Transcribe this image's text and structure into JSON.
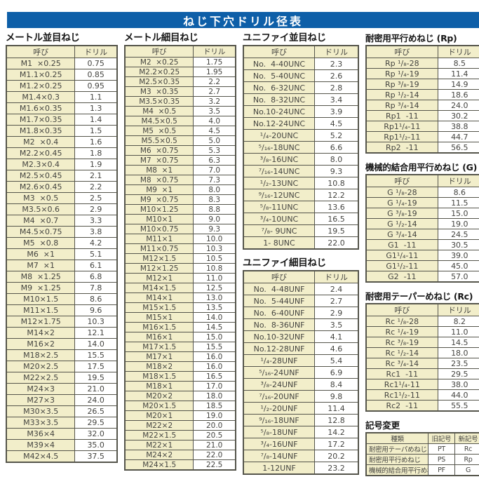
{
  "page_title": "ねじ下穴ドリル径表",
  "column_headers": {
    "name": "呼び",
    "drill": "ドリル"
  },
  "colors": {
    "title_bar_bg": "#0e5fa8",
    "title_text": "#ffffff",
    "cell_yellow": "#f2eeca",
    "border": "#55554b"
  },
  "sections": {
    "metric_coarse": {
      "title": "メートル並目ねじ",
      "rows": [
        [
          "M1  ×0.25",
          "0.75"
        ],
        [
          "M1.1×0.25",
          "0.85"
        ],
        [
          "M1.2×0.25",
          "0.95"
        ],
        [
          "M1.4×0.3",
          "1.1"
        ],
        [
          "M1.6×0.35",
          "1.3"
        ],
        [
          "M1.7×0.35",
          "1.4"
        ],
        [
          "M1.8×0.35",
          "1.5"
        ],
        [
          "M2  ×0.4",
          "1.6"
        ],
        [
          "M2.2×0.45",
          "1.8"
        ],
        [
          "M2.3×0.4",
          "1.9"
        ],
        [
          "M2.5×0.45",
          "2.1"
        ],
        [
          "M2.6×0.45",
          "2.2"
        ],
        [
          "M3  ×0.5",
          "2.5"
        ],
        [
          "M3.5×0.6",
          "2.9"
        ],
        [
          "M4  ×0.7",
          "3.3"
        ],
        [
          "M4.5×0.75",
          "3.8"
        ],
        [
          "M5  ×0.8",
          "4.2"
        ],
        [
          "M6  ×1",
          "5.1"
        ],
        [
          "M7  ×1",
          "6.1"
        ],
        [
          "M8  ×1.25",
          "6.8"
        ],
        [
          "M9  ×1.25",
          "7.8"
        ],
        [
          "M10×1.5",
          "8.6"
        ],
        [
          "M11×1.5",
          "9.6"
        ],
        [
          "M12×1.75",
          "10.3"
        ],
        [
          "M14×2",
          "12.1"
        ],
        [
          "M16×2",
          "14.0"
        ],
        [
          "M18×2.5",
          "15.5"
        ],
        [
          "M20×2.5",
          "17.5"
        ],
        [
          "M22×2.5",
          "19.5"
        ],
        [
          "M24×3",
          "21.0"
        ],
        [
          "M27×3",
          "24.0"
        ],
        [
          "M30×3.5",
          "26.5"
        ],
        [
          "M33×3.5",
          "29.5"
        ],
        [
          "M36×4",
          "32.0"
        ],
        [
          "M39×4",
          "35.0"
        ],
        [
          "M42×4.5",
          "37.5"
        ]
      ]
    },
    "metric_fine": {
      "title": "メートル細目ねじ",
      "rows": [
        [
          "M2  ×0.25",
          "1.75"
        ],
        [
          "M2.2×0.25",
          "1.95"
        ],
        [
          "M2.5×0.35",
          "2.2"
        ],
        [
          "M3  ×0.35",
          "2.7"
        ],
        [
          "M3.5×0.35",
          "3.2"
        ],
        [
          "M4  ×0.5",
          "3.5"
        ],
        [
          "M4.5×0.5",
          "4.0"
        ],
        [
          "M5  ×0.5",
          "4.5"
        ],
        [
          "M5.5×0.5",
          "5.0"
        ],
        [
          "M6  ×0.75",
          "5.3"
        ],
        [
          "M7  ×0.75",
          "6.3"
        ],
        [
          "M8  ×1",
          "7.0"
        ],
        [
          "M8  ×0.75",
          "7.3"
        ],
        [
          "M9  ×1",
          "8.0"
        ],
        [
          "M9  ×0.75",
          "8.3"
        ],
        [
          "M10×1.25",
          "8.8"
        ],
        [
          "M10×1",
          "9.0"
        ],
        [
          "M10×0.75",
          "9.3"
        ],
        [
          "M11×1",
          "10.0"
        ],
        [
          "M11×0.75",
          "10.3"
        ],
        [
          "M12×1.5",
          "10.5"
        ],
        [
          "M12×1.25",
          "10.8"
        ],
        [
          "M12×1",
          "11.0"
        ],
        [
          "M14×1.5",
          "12.5"
        ],
        [
          "M14×1",
          "13.0"
        ],
        [
          "M15×1.5",
          "13.5"
        ],
        [
          "M15×1",
          "14.0"
        ],
        [
          "M16×1.5",
          "14.5"
        ],
        [
          "M16×1",
          "15.0"
        ],
        [
          "M17×1.5",
          "15.5"
        ],
        [
          "M17×1",
          "16.0"
        ],
        [
          "M18×2",
          "16.0"
        ],
        [
          "M18×1.5",
          "16.5"
        ],
        [
          "M18×1",
          "17.0"
        ],
        [
          "M20×2",
          "18.0"
        ],
        [
          "M20×1.5",
          "18.5"
        ],
        [
          "M20×1",
          "19.0"
        ],
        [
          "M22×2",
          "20.0"
        ],
        [
          "M22×1.5",
          "20.5"
        ],
        [
          "M22×1",
          "21.0"
        ],
        [
          "M24×2",
          "22.0"
        ],
        [
          "M24×1.5",
          "22.5"
        ]
      ]
    },
    "unified_coarse": {
      "title": "ユニファイ並目ねじ",
      "rows": [
        [
          "No.  4-40UNC",
          "2.3"
        ],
        [
          "No.  5-40UNC",
          "2.6"
        ],
        [
          "No.  6-32UNC",
          "2.8"
        ],
        [
          "No.  8-32UNC",
          "3.4"
        ],
        [
          "No.10-24UNC",
          "3.9"
        ],
        [
          "No.12-24UNC",
          "4.5"
        ],
        [
          "¹/₄-20UNC",
          "5.2"
        ],
        [
          "⁵/₁₆-18UNC",
          "6.6"
        ],
        [
          "³/₈-16UNC",
          "8.0"
        ],
        [
          "⁷/₁₆-14UNC",
          "9.3"
        ],
        [
          "¹/₂-13UNC",
          "10.8"
        ],
        [
          "⁹/₁₆-12UNC",
          "12.2"
        ],
        [
          "⁵/₈-11UNC",
          "13.6"
        ],
        [
          "³/₄-10UNC",
          "16.5"
        ],
        [
          "⁷/₈- 9UNC",
          "19.5"
        ],
        [
          "1- 8UNC",
          "22.0"
        ]
      ]
    },
    "unified_fine": {
      "title": "ユニファイ細目ねじ",
      "rows": [
        [
          "No.  4-48UNF",
          "2.4"
        ],
        [
          "No.  5-44UNF",
          "2.7"
        ],
        [
          "No.  6-40UNF",
          "2.9"
        ],
        [
          "No.  8-36UNF",
          "3.5"
        ],
        [
          "No.10-32UNF",
          "4.1"
        ],
        [
          "No.12-28UNF",
          "4.6"
        ],
        [
          "¹/₄-28UNF",
          "5.4"
        ],
        [
          "⁵/₁₆-24UNF",
          "6.9"
        ],
        [
          "³/₈-24UNF",
          "8.4"
        ],
        [
          "⁷/₁₆-20UNF",
          "9.8"
        ],
        [
          "¹/₂-20UNF",
          "11.4"
        ],
        [
          "⁹/₁₆-18UNF",
          "12.8"
        ],
        [
          "⁵/₈-18UNF",
          "14.2"
        ],
        [
          "³/₄-16UNF",
          "17.2"
        ],
        [
          "⁷/₈-14UNF",
          "20.2"
        ],
        [
          "1-12UNF",
          "23.2"
        ]
      ]
    },
    "rp": {
      "title": "耐密用平行めねじ (Rp)",
      "rows": [
        [
          "Rp ¹/₈-28",
          "8.5"
        ],
        [
          "Rp ¹/₄-19",
          "11.4"
        ],
        [
          "Rp ³/₈-19",
          "14.9"
        ],
        [
          "Rp ¹/₂-14",
          "18.6"
        ],
        [
          "Rp ³/₄-14",
          "24.0"
        ],
        [
          "Rp1  -11",
          "30.2"
        ],
        [
          "Rp1¹/₄-11",
          "38.8"
        ],
        [
          "Rp1¹/₂-11",
          "44.7"
        ],
        [
          "Rp2  -11",
          "56.5"
        ]
      ]
    },
    "g": {
      "title": "機械的結合用平行めねじ (G)",
      "rows": [
        [
          "G ¹/₈-28",
          "8.6"
        ],
        [
          "G ¹/₄-19",
          "11.5"
        ],
        [
          "G ³/₈-19",
          "15.0"
        ],
        [
          "G ¹/₂-14",
          "19.0"
        ],
        [
          "G ³/₄-14",
          "24.5"
        ],
        [
          "G1  -11",
          "30.5"
        ],
        [
          "G1¹/₄-11",
          "39.0"
        ],
        [
          "G1¹/₂-11",
          "45.0"
        ],
        [
          "G2  -11",
          "57.0"
        ]
      ]
    },
    "rc": {
      "title": "耐密用テーパーめねじ (Rc)",
      "rows": [
        [
          "Rc ¹/₈-28",
          "8.2"
        ],
        [
          "Rc ¹/₄-19",
          "11.0"
        ],
        [
          "Rc ³/₈-19",
          "14.5"
        ],
        [
          "Rc ¹/₂-14",
          "18.0"
        ],
        [
          "Rc ³/₄-14",
          "23.5"
        ],
        [
          "Rc1  -11",
          "29.5"
        ],
        [
          "Rc1¹/₄-11",
          "38.0"
        ],
        [
          "Rc1¹/₂-11",
          "44.0"
        ],
        [
          "Rc2  -11",
          "55.5"
        ]
      ]
    },
    "symbol_change": {
      "title": "記号変更",
      "headers": [
        "種類",
        "旧記号",
        "新記号"
      ],
      "rows": [
        [
          "耐密用テーパめねじ",
          "PT",
          "Rc"
        ],
        [
          "耐密用平行めねじ",
          "PS",
          "Rp"
        ],
        [
          "機械的結合用平行めねじ",
          "PF",
          "G"
        ]
      ]
    }
  }
}
